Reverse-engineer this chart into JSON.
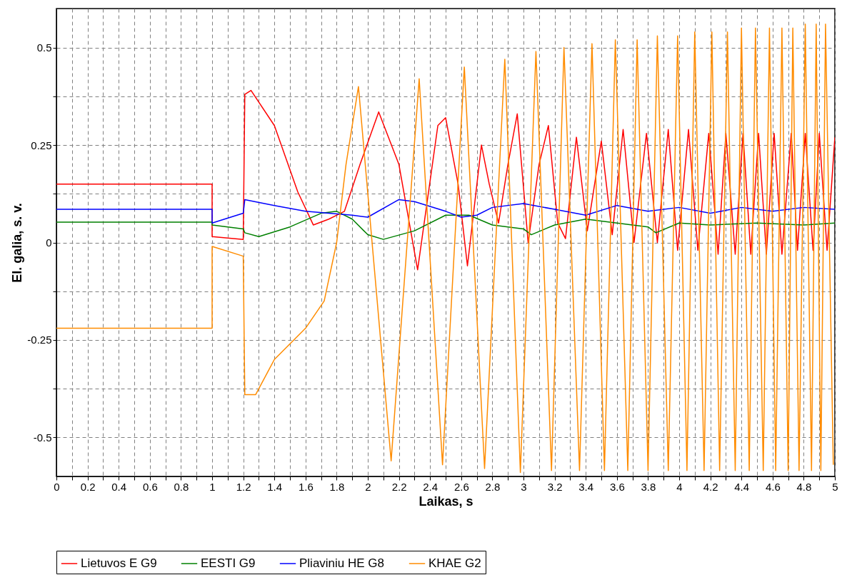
{
  "chart_data": {
    "type": "line",
    "xlabel": "Laikas, s",
    "ylabel": "El. galia, s. v.",
    "xlim": [
      0,
      5
    ],
    "ylim": [
      -0.6,
      0.6
    ],
    "xticks": [
      0,
      {
        "value": 0.1,
        "label": null
      },
      0.2,
      {
        "value": 0.3,
        "label": null
      },
      0.4,
      {
        "value": 0.5,
        "label": null
      },
      0.6,
      {
        "value": 0.7,
        "label": null
      },
      0.8,
      {
        "value": 0.9,
        "label": null
      },
      1,
      {
        "value": 1.1,
        "label": null
      },
      1.2,
      {
        "value": 1.3,
        "label": null
      },
      1.4,
      {
        "value": 1.5,
        "label": null
      },
      1.6,
      {
        "value": 1.7,
        "label": null
      },
      1.8,
      {
        "value": 1.9,
        "label": null
      },
      2,
      {
        "value": 2.1,
        "label": null
      },
      2.2,
      {
        "value": 2.3,
        "label": null
      },
      2.4,
      {
        "value": 2.5,
        "label": null
      },
      2.6,
      {
        "value": 2.7,
        "label": null
      },
      2.8,
      {
        "value": 2.9,
        "label": null
      },
      3,
      {
        "value": 3.1,
        "label": null
      },
      3.2,
      {
        "value": 3.3,
        "label": null
      },
      3.4,
      {
        "value": 3.5,
        "label": null
      },
      3.6,
      {
        "value": 3.7,
        "label": null
      },
      3.8,
      {
        "value": 3.9,
        "label": null
      },
      4,
      {
        "value": 4.1,
        "label": null
      },
      4.2,
      {
        "value": 4.3,
        "label": null
      },
      4.4,
      {
        "value": 4.5,
        "label": null
      },
      4.6,
      {
        "value": 4.7,
        "label": null
      },
      4.8,
      {
        "value": 4.9,
        "label": null
      },
      5
    ],
    "yticks": [
      -0.5,
      {
        "value": -0.375,
        "label": null
      },
      -0.25,
      {
        "value": -0.125,
        "label": null
      },
      0,
      {
        "value": 0.125,
        "label": null
      },
      0.25,
      {
        "value": 0.375,
        "label": null
      },
      0.5
    ],
    "grid": true,
    "legend": "bottom",
    "line_style": "solid",
    "marker": "none",
    "series": [
      {
        "name": "Lietuvos E G9",
        "color": "#ff0000",
        "x": [
          0,
          1,
          1,
          1.2,
          1.21,
          1.25,
          1.4,
          1.55,
          1.65,
          1.75,
          1.85,
          1.95,
          2.07,
          2.2,
          2.32,
          2.45,
          2.5,
          2.58,
          2.64,
          2.73,
          2.78,
          2.84,
          2.9,
          2.96,
          3.03,
          3.1,
          3.16,
          3.22,
          3.27,
          3.34,
          3.41,
          3.5,
          3.57,
          3.64,
          3.71,
          3.79,
          3.86,
          3.93,
          3.99,
          4.06,
          4.12,
          4.19,
          4.25,
          4.3,
          4.36,
          4.41,
          4.46,
          4.51,
          4.56,
          4.61,
          4.66,
          4.72,
          4.76,
          4.81,
          4.86,
          4.9,
          4.95,
          5
        ],
        "values": [
          0.15,
          0.15,
          0.015,
          0.008,
          0.38,
          0.39,
          0.3,
          0.13,
          0.045,
          0.06,
          0.08,
          0.2,
          0.335,
          0.2,
          -0.07,
          0.3,
          0.32,
          0.15,
          -0.06,
          0.25,
          0.15,
          0.05,
          0.2,
          0.33,
          0.0,
          0.2,
          0.3,
          0.05,
          0.01,
          0.27,
          0.03,
          0.26,
          0.02,
          0.29,
          0.0,
          0.28,
          0.0,
          0.29,
          -0.02,
          0.29,
          -0.02,
          0.28,
          -0.03,
          0.28,
          -0.03,
          0.28,
          -0.03,
          0.28,
          -0.03,
          0.28,
          -0.03,
          0.28,
          -0.02,
          0.28,
          -0.02,
          0.28,
          -0.02,
          0.27
        ]
      },
      {
        "name": "EESTI G9",
        "color": "#008000",
        "x": [
          0,
          1,
          1,
          1.2,
          1.21,
          1.3,
          1.5,
          1.7,
          1.8,
          1.9,
          2.0,
          2.1,
          2.3,
          2.5,
          2.65,
          2.8,
          3.0,
          3.05,
          3.2,
          3.4,
          3.6,
          3.8,
          3.85,
          4.0,
          4.2,
          4.5,
          4.8,
          5
        ],
        "values": [
          0.052,
          0.052,
          0.045,
          0.035,
          0.025,
          0.015,
          0.04,
          0.075,
          0.08,
          0.06,
          0.02,
          0.008,
          0.03,
          0.07,
          0.07,
          0.045,
          0.035,
          0.02,
          0.045,
          0.06,
          0.05,
          0.04,
          0.025,
          0.05,
          0.045,
          0.05,
          0.045,
          0.05
        ]
      },
      {
        "name": "Pliaviniu HE G8",
        "color": "#0000ff",
        "x": [
          0,
          1,
          1,
          1.2,
          1.21,
          1.4,
          1.6,
          1.9,
          2.0,
          2.2,
          2.3,
          2.5,
          2.6,
          2.7,
          2.8,
          3.0,
          3.2,
          3.4,
          3.6,
          3.8,
          4.0,
          4.2,
          4.4,
          4.6,
          4.8,
          5
        ],
        "values": [
          0.085,
          0.085,
          0.05,
          0.075,
          0.11,
          0.095,
          0.08,
          0.07,
          0.065,
          0.11,
          0.105,
          0.08,
          0.065,
          0.07,
          0.09,
          0.1,
          0.085,
          0.07,
          0.095,
          0.08,
          0.09,
          0.075,
          0.09,
          0.08,
          0.09,
          0.085
        ]
      },
      {
        "name": "KHAE G2",
        "color": "#ff8c00",
        "x": [
          0,
          1,
          1,
          1.2,
          1.21,
          1.28,
          1.4,
          1.6,
          1.72,
          1.8,
          1.86,
          1.94,
          2.15,
          2.33,
          2.48,
          2.62,
          2.75,
          2.88,
          2.98,
          3.08,
          3.18,
          3.26,
          3.36,
          3.44,
          3.52,
          3.59,
          3.67,
          3.73,
          3.8,
          3.86,
          3.93,
          3.99,
          4.05,
          4.1,
          4.16,
          4.21,
          4.26,
          4.31,
          4.36,
          4.4,
          4.45,
          4.49,
          4.54,
          4.58,
          4.62,
          4.66,
          4.7,
          4.73,
          4.77,
          4.81,
          4.85,
          4.88,
          4.91,
          4.94,
          4.99
        ],
        "values": [
          -0.22,
          -0.22,
          -0.01,
          -0.035,
          -0.39,
          -0.39,
          -0.3,
          -0.22,
          -0.15,
          0.0,
          0.2,
          0.4,
          -0.56,
          0.42,
          -0.57,
          0.45,
          -0.58,
          0.47,
          -0.59,
          0.49,
          -0.585,
          0.5,
          -0.585,
          0.51,
          -0.585,
          0.52,
          -0.585,
          0.52,
          -0.585,
          0.53,
          -0.585,
          0.53,
          -0.585,
          0.54,
          -0.585,
          0.54,
          -0.585,
          0.54,
          -0.585,
          0.55,
          -0.585,
          0.55,
          -0.585,
          0.55,
          -0.585,
          0.55,
          -0.585,
          0.55,
          -0.585,
          0.56,
          -0.585,
          0.56,
          -0.585,
          0.56,
          -0.57
        ]
      }
    ]
  }
}
